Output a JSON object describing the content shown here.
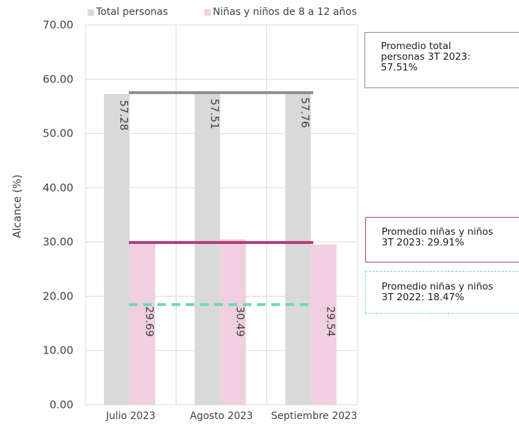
{
  "chart_data": {
    "type": "bar",
    "categories": [
      "Julio 2023",
      "Agosto 2023",
      "Septiembre 2023"
    ],
    "series": [
      {
        "name": "Total personas",
        "values": [
          57.28,
          57.51,
          57.76
        ],
        "color": "#d9d9d9"
      },
      {
        "name": "Niñas y niños de 8 a 12 años",
        "values": [
          29.69,
          30.49,
          29.54
        ],
        "color": "#f0cfe0"
      }
    ],
    "data_labels": [
      "57.28",
      "57.51",
      "57.76",
      "29.69",
      "30.49",
      "29.54"
    ],
    "ylabel": "Alcance (%)",
    "xlabel": "",
    "ylim": [
      0,
      70
    ],
    "yticks": [
      "0.00",
      "10.00",
      "20.00",
      "30.00",
      "40.00",
      "50.00",
      "60.00",
      "70.00"
    ],
    "grid": true,
    "legend_position": "top",
    "reference_lines": [
      {
        "value": 57.51,
        "color": "#8c8a96",
        "style": "solid",
        "label_lines": [
          "Promedio total",
          "personas 3T 2023:",
          "57.51%"
        ]
      },
      {
        "value": 29.91,
        "color": "#b03a78",
        "style": "solid",
        "label_lines": [
          "Promedio niñas y niños",
          "3T 2023: 29.91%"
        ]
      },
      {
        "value": 18.47,
        "color": "#6dd9b6",
        "style": "dashed",
        "label_lines": [
          "Promedio niñas y niños",
          "3T 2022: 18.47%"
        ]
      }
    ]
  }
}
